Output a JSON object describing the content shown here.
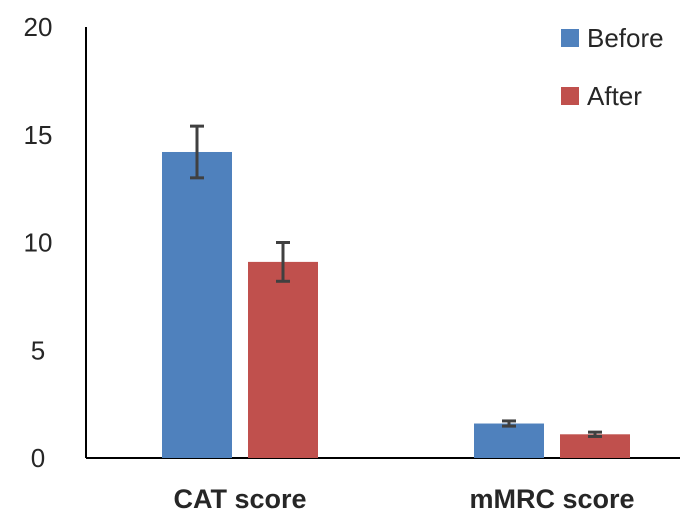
{
  "chart_data": {
    "type": "bar",
    "title": "",
    "xlabel": "",
    "ylabel": "",
    "categories": [
      "CAT score",
      "mMRC score"
    ],
    "series": [
      {
        "name": "Before",
        "color": "#4f81bd",
        "values": [
          14.2,
          1.6
        ],
        "error": [
          1.2,
          0.12
        ]
      },
      {
        "name": "After",
        "color": "#c0504d",
        "values": [
          9.1,
          1.1
        ],
        "error": [
          0.9,
          0.1
        ]
      }
    ],
    "ylim": [
      0,
      20
    ],
    "yticks": [
      "0",
      "5",
      "10",
      "15",
      "20"
    ],
    "grid": false,
    "legend_position": "top-right"
  }
}
